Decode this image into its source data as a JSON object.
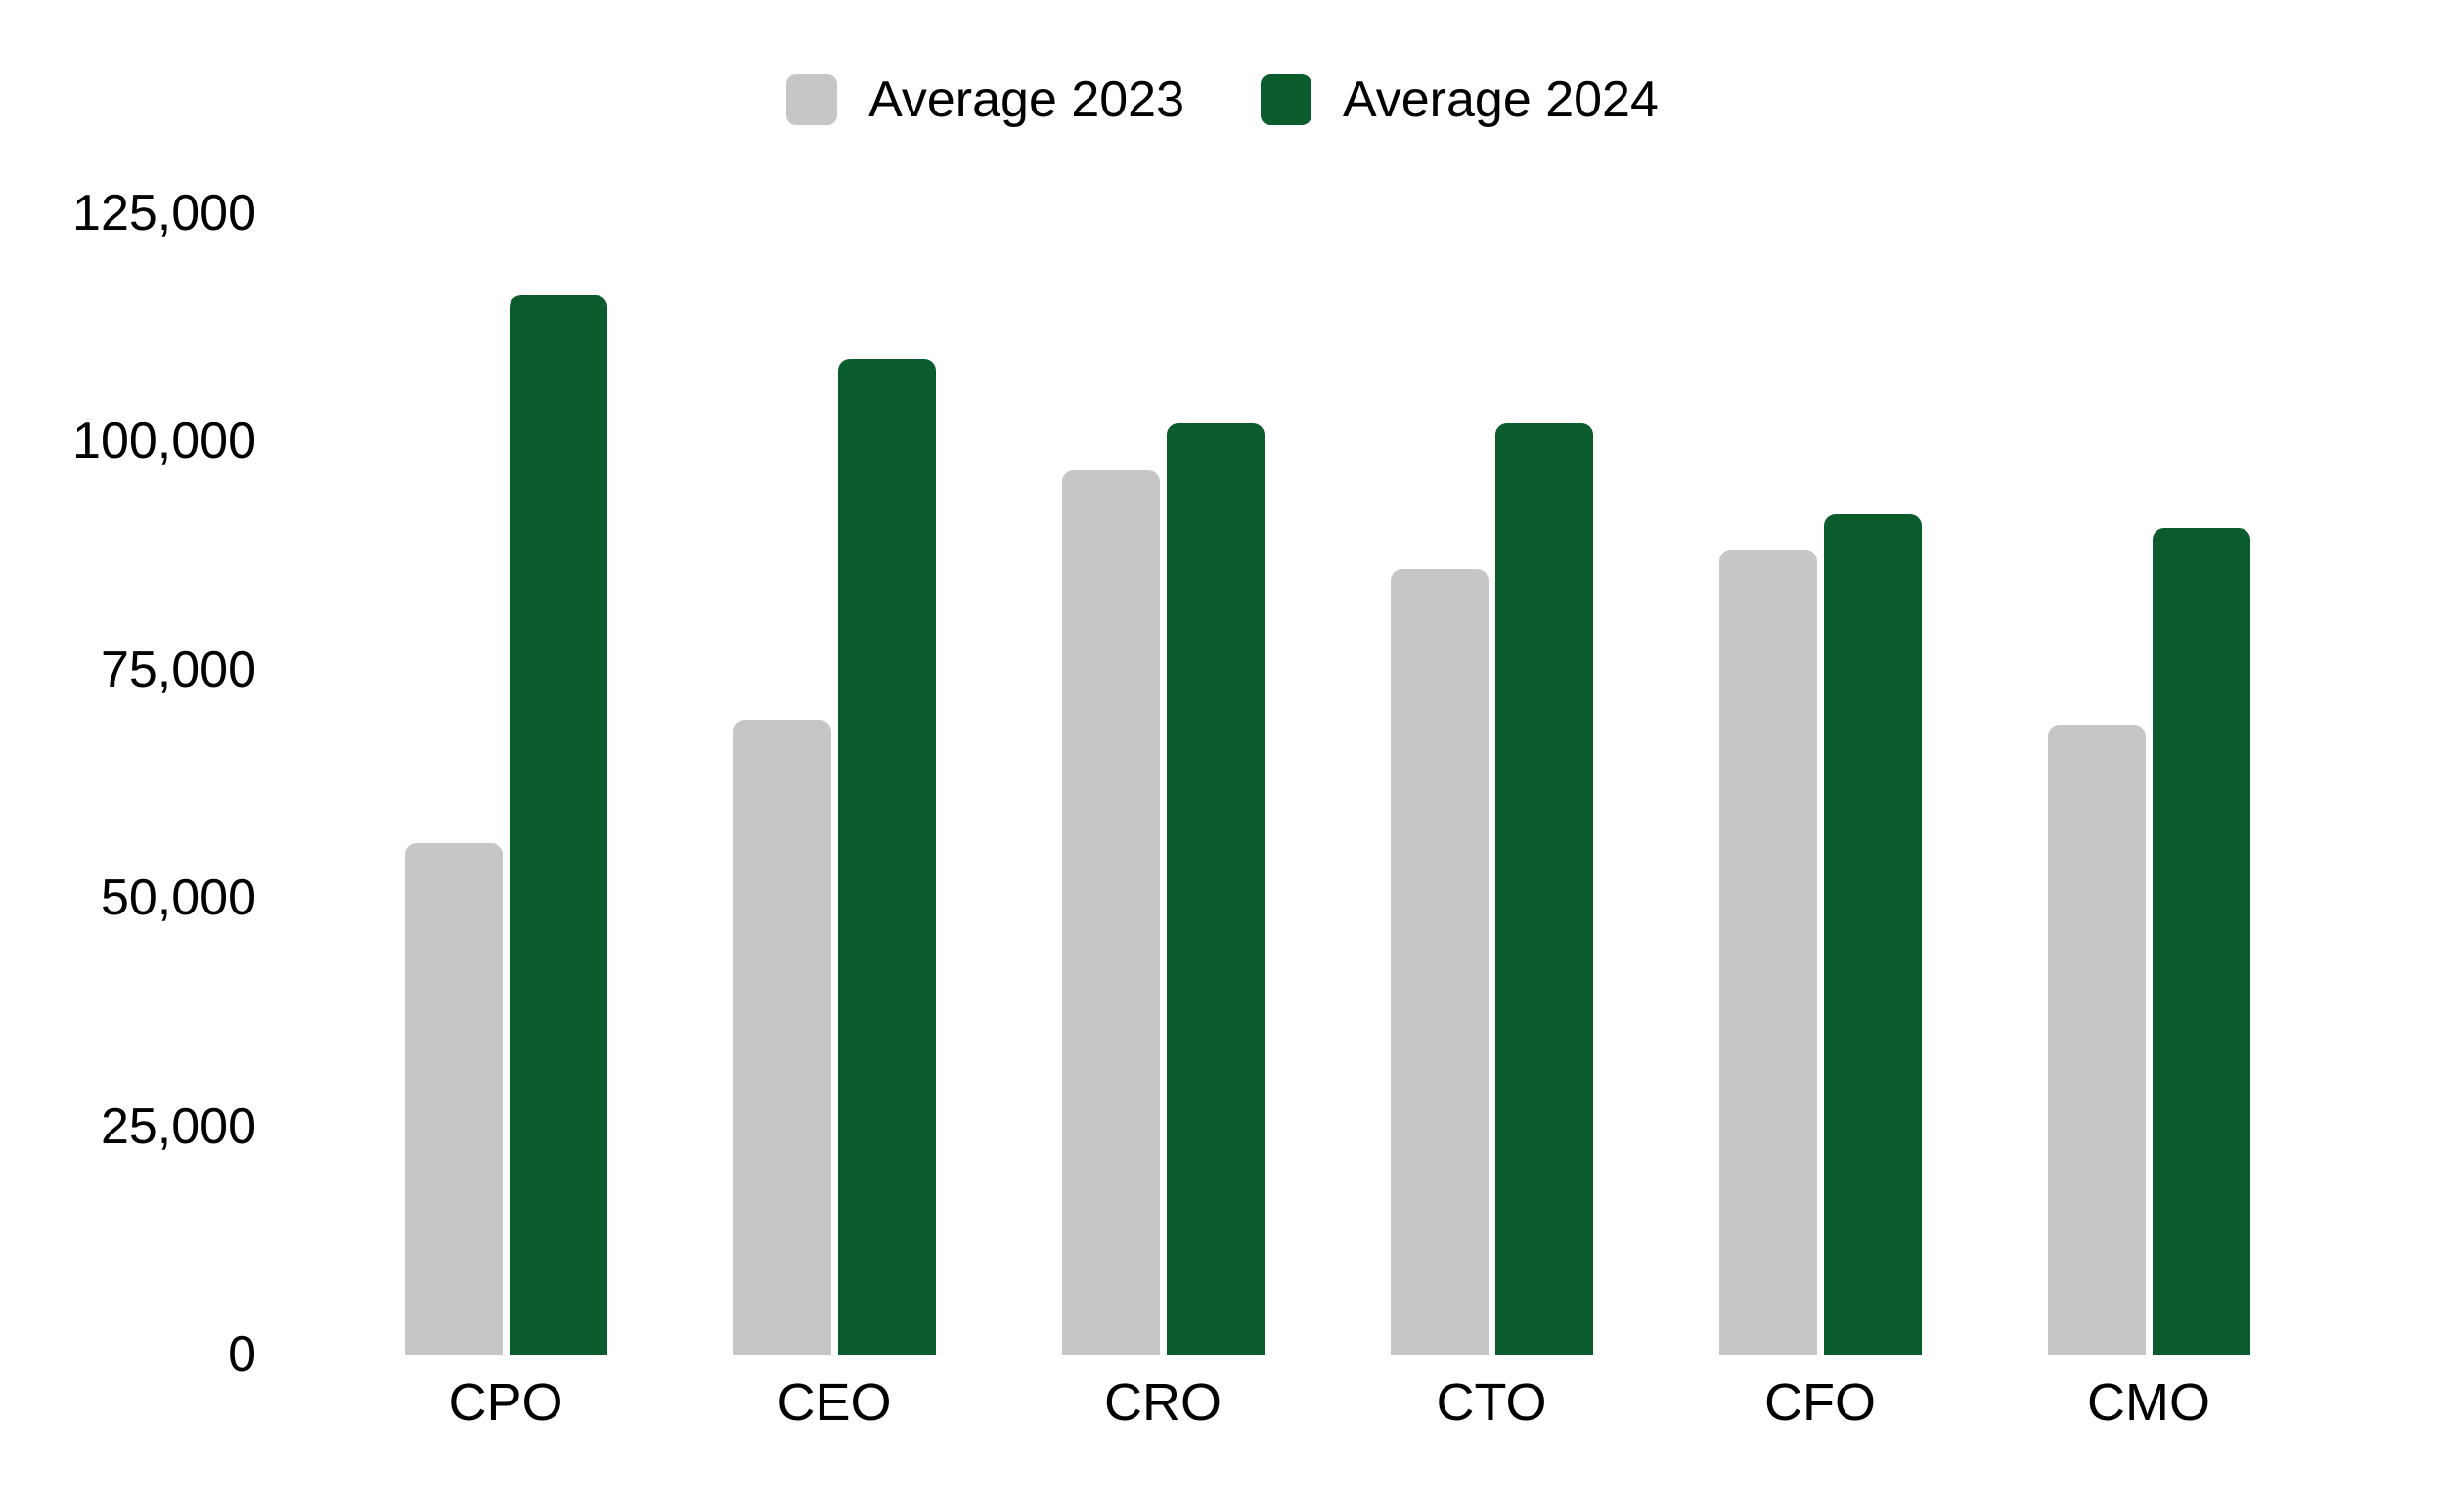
{
  "chart_data": {
    "type": "bar",
    "title": "",
    "xlabel": "",
    "ylabel": "",
    "categories": [
      "CPO",
      "CEO",
      "CRO",
      "CTO",
      "CFO",
      "CMO"
    ],
    "series": [
      {
        "name": "Average 2023",
        "color": "#c6c6c6",
        "values": [
          56000,
          69500,
          96800,
          86000,
          88200,
          69000
        ]
      },
      {
        "name": "Average 2024",
        "color": "#0b5c2c",
        "values": [
          116000,
          109000,
          102000,
          102000,
          92000,
          90500
        ]
      }
    ],
    "ylim": [
      0,
      125000
    ],
    "y_tick_values": [
      0,
      25000,
      50000,
      75000,
      100000,
      125000
    ],
    "y_tick_labels": [
      "0",
      "25,000",
      "50,000",
      "75,000",
      "100,000",
      "125,000"
    ],
    "grid": false,
    "axis_lines": false,
    "legend_position": "top-center"
  },
  "legend": {
    "items": [
      {
        "label": "Average 2023",
        "color": "#c6c6c6"
      },
      {
        "label": "Average 2024",
        "color": "#0b5c2c"
      }
    ]
  },
  "colors": {
    "background": "#ffffff",
    "text": "#000000"
  }
}
